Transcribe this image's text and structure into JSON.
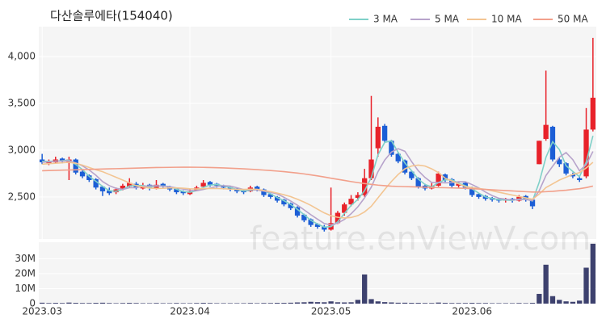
{
  "watermark": "feature.enViewV.com",
  "chart_data": [
    {
      "type": "candlestick",
      "title": "다산솔루에타(154040)",
      "up_color": "#e8222a",
      "down_color": "#1c5ed6",
      "grid": true,
      "ylim": [
        2050,
        4320
      ],
      "yticks": [
        {
          "value": 2500,
          "label": "2,500"
        },
        {
          "value": 3000,
          "label": "3,000"
        },
        {
          "value": 3500,
          "label": "3,500"
        },
        {
          "value": 4000,
          "label": "4,000"
        }
      ],
      "open": [
        2900,
        2860,
        2870,
        2910,
        2870,
        2900,
        2770,
        2730,
        2690,
        2610,
        2570,
        2550,
        2590,
        2610,
        2640,
        2590,
        2630,
        2590,
        2640,
        2610,
        2590,
        2560,
        2530,
        2570,
        2610,
        2660,
        2640,
        2610,
        2600,
        2590,
        2570,
        2560,
        2610,
        2580,
        2530,
        2500,
        2470,
        2430,
        2390,
        2310,
        2260,
        2210,
        2180,
        2150,
        2220,
        2330,
        2420,
        2490,
        2520,
        2700,
        3020,
        3260,
        3100,
        2960,
        2890,
        2770,
        2700,
        2620,
        2590,
        2620,
        2740,
        2690,
        2620,
        2650,
        2600,
        2530,
        2510,
        2490,
        2480,
        2460,
        2480,
        2460,
        2510,
        2470,
        2850,
        3120,
        3250,
        2900,
        2860,
        2740,
        2700,
        2720,
        3220
      ],
      "high": [
        2960,
        2900,
        2930,
        2920,
        2930,
        2910,
        2790,
        2740,
        2700,
        2620,
        2600,
        2600,
        2640,
        2700,
        2660,
        2650,
        2640,
        2680,
        2650,
        2620,
        2600,
        2570,
        2580,
        2620,
        2680,
        2670,
        2650,
        2630,
        2620,
        2600,
        2580,
        2620,
        2620,
        2590,
        2540,
        2510,
        2480,
        2440,
        2400,
        2320,
        2270,
        2220,
        2200,
        2600,
        2350,
        2440,
        2520,
        2550,
        2800,
        3580,
        3350,
        3280,
        3110,
        2980,
        2900,
        2780,
        2710,
        2640,
        2650,
        2770,
        2750,
        2700,
        2660,
        2660,
        2610,
        2540,
        2520,
        2500,
        2490,
        2490,
        2490,
        2520,
        2520,
        2480,
        3100,
        3850,
        3260,
        2920,
        2870,
        2760,
        2720,
        3450,
        4200
      ],
      "low": [
        2850,
        2840,
        2860,
        2860,
        2680,
        2740,
        2700,
        2660,
        2580,
        2510,
        2520,
        2530,
        2570,
        2600,
        2580,
        2580,
        2570,
        2580,
        2600,
        2560,
        2530,
        2520,
        2520,
        2560,
        2600,
        2610,
        2600,
        2580,
        2560,
        2540,
        2530,
        2550,
        2560,
        2500,
        2480,
        2440,
        2400,
        2360,
        2280,
        2230,
        2180,
        2160,
        2130,
        2140,
        2210,
        2300,
        2400,
        2460,
        2500,
        2680,
        2930,
        3080,
        2930,
        2860,
        2740,
        2680,
        2590,
        2570,
        2580,
        2610,
        2660,
        2600,
        2600,
        2580,
        2500,
        2480,
        2460,
        2450,
        2440,
        2440,
        2440,
        2450,
        2450,
        2370,
        2850,
        3100,
        2880,
        2820,
        2730,
        2700,
        2660,
        2700,
        3200
      ],
      "close": [
        2870,
        2880,
        2900,
        2880,
        2900,
        2760,
        2720,
        2680,
        2600,
        2560,
        2540,
        2580,
        2620,
        2650,
        2600,
        2620,
        2600,
        2630,
        2620,
        2580,
        2550,
        2540,
        2560,
        2600,
        2650,
        2630,
        2620,
        2600,
        2580,
        2560,
        2550,
        2600,
        2580,
        2520,
        2500,
        2460,
        2420,
        2380,
        2300,
        2250,
        2200,
        2180,
        2150,
        2220,
        2330,
        2420,
        2480,
        2520,
        2700,
        2900,
        3250,
        3100,
        2950,
        2880,
        2760,
        2700,
        2610,
        2590,
        2620,
        2750,
        2680,
        2620,
        2640,
        2600,
        2520,
        2500,
        2480,
        2470,
        2460,
        2470,
        2460,
        2500,
        2470,
        2400,
        3100,
        3270,
        2900,
        2850,
        2750,
        2720,
        2680,
        3220,
        3560
      ],
      "series": [
        {
          "name": "3 MA",
          "color": "#7fd0c8",
          "values": [
            2880,
            2880,
            2883,
            2887,
            2893,
            2847,
            2793,
            2720,
            2667,
            2613,
            2567,
            2560,
            2580,
            2617,
            2623,
            2623,
            2607,
            2617,
            2617,
            2610,
            2583,
            2557,
            2550,
            2567,
            2603,
            2627,
            2633,
            2617,
            2600,
            2580,
            2563,
            2570,
            2577,
            2567,
            2533,
            2493,
            2460,
            2420,
            2367,
            2310,
            2250,
            2210,
            2177,
            2183,
            2233,
            2323,
            2410,
            2473,
            2567,
            2707,
            2950,
            3083,
            3100,
            2977,
            2863,
            2780,
            2690,
            2633,
            2607,
            2653,
            2683,
            2683,
            2647,
            2620,
            2587,
            2540,
            2500,
            2483,
            2470,
            2467,
            2463,
            2477,
            2477,
            2457,
            2657,
            2923,
            3090,
            3007,
            2833,
            2773,
            2717,
            2873,
            3153
          ]
        },
        {
          "name": "5 MA",
          "color": "#b7a3cb",
          "values": [
            2870,
            2875,
            2883,
            2883,
            2886,
            2864,
            2832,
            2788,
            2732,
            2664,
            2620,
            2592,
            2580,
            2598,
            2598,
            2614,
            2618,
            2620,
            2614,
            2610,
            2596,
            2584,
            2570,
            2566,
            2580,
            2596,
            2612,
            2620,
            2616,
            2598,
            2578,
            2578,
            2574,
            2562,
            2550,
            2532,
            2496,
            2456,
            2412,
            2362,
            2310,
            2262,
            2216,
            2200,
            2220,
            2260,
            2320,
            2394,
            2490,
            2604,
            2770,
            2894,
            2980,
            3016,
            2988,
            2878,
            2780,
            2708,
            2654,
            2654,
            2650,
            2652,
            2662,
            2662,
            2632,
            2596,
            2552,
            2514,
            2486,
            2476,
            2468,
            2472,
            2472,
            2460,
            2566,
            2728,
            2828,
            2924,
            2974,
            2898,
            2780,
            2844,
            2986
          ]
        },
        {
          "name": "10 MA",
          "color": "#f3c592",
          "values": [
            2850,
            2855,
            2860,
            2865,
            2870,
            2860,
            2840,
            2815,
            2790,
            2770,
            2740,
            2710,
            2680,
            2650,
            2620,
            2606,
            2594,
            2590,
            2592,
            2596,
            2597,
            2593,
            2587,
            2585,
            2590,
            2590,
            2590,
            2588,
            2583,
            2580,
            2580,
            2583,
            2581,
            2570,
            2557,
            2541,
            2523,
            2503,
            2475,
            2445,
            2410,
            2369,
            2329,
            2299,
            2282,
            2275,
            2280,
            2300,
            2340,
            2400,
            2490,
            2580,
            2665,
            2740,
            2800,
            2830,
            2840,
            2830,
            2800,
            2760,
            2700,
            2670,
            2640,
            2610,
            2600,
            2590,
            2580,
            2565,
            2550,
            2535,
            2520,
            2505,
            2490,
            2475,
            2530,
            2600,
            2640,
            2680,
            2710,
            2740,
            2760,
            2810,
            2870
          ]
        },
        {
          "name": "50 MA",
          "color": "#f2a08b",
          "values": [
            2780,
            2782,
            2784,
            2786,
            2788,
            2790,
            2792,
            2794,
            2796,
            2798,
            2800,
            2802,
            2804,
            2806,
            2808,
            2810,
            2812,
            2814,
            2815,
            2816,
            2817,
            2818,
            2818,
            2817,
            2816,
            2814,
            2812,
            2810,
            2807,
            2804,
            2800,
            2796,
            2792,
            2787,
            2782,
            2776,
            2770,
            2763,
            2755,
            2746,
            2736,
            2725,
            2713,
            2700,
            2688,
            2676,
            2664,
            2653,
            2643,
            2634,
            2626,
            2620,
            2615,
            2612,
            2610,
            2608,
            2606,
            2604,
            2602,
            2600,
            2598,
            2596,
            2594,
            2592,
            2588,
            2584,
            2580,
            2576,
            2572,
            2568,
            2564,
            2560,
            2556,
            2552,
            2552,
            2556,
            2560,
            2566,
            2572,
            2580,
            2588,
            2600,
            2616
          ]
        }
      ]
    },
    {
      "type": "bar",
      "color": "#3d416e",
      "ylim": [
        0,
        41000000
      ],
      "yticks": [
        0,
        {
          "value": 10000000,
          "label": "10M"
        },
        {
          "value": 20000000,
          "label": "20M"
        },
        {
          "value": 30000000,
          "label": "30M"
        }
      ],
      "categories": [
        "2023.03",
        null,
        null,
        null,
        null,
        null,
        null,
        null,
        null,
        null,
        null,
        null,
        null,
        null,
        null,
        null,
        null,
        null,
        null,
        null,
        null,
        null,
        "2023.04",
        null,
        null,
        null,
        null,
        null,
        null,
        null,
        null,
        null,
        null,
        null,
        null,
        null,
        null,
        null,
        null,
        null,
        null,
        null,
        null,
        "2023.05",
        null,
        null,
        null,
        null,
        null,
        null,
        null,
        null,
        null,
        null,
        null,
        null,
        null,
        null,
        null,
        null,
        null,
        null,
        null,
        null,
        "2023.06",
        null,
        null,
        null,
        null,
        null,
        null,
        null,
        null,
        null,
        null,
        null,
        null,
        null,
        null,
        null,
        null,
        null,
        null
      ],
      "values": [
        600000,
        400000,
        500000,
        400000,
        700000,
        500000,
        400000,
        400000,
        500000,
        600000,
        400000,
        300000,
        400000,
        500000,
        400000,
        300000,
        300000,
        400000,
        300000,
        300000,
        400000,
        300000,
        300000,
        400000,
        500000,
        400000,
        300000,
        300000,
        300000,
        300000,
        300000,
        400000,
        300000,
        400000,
        400000,
        500000,
        500000,
        600000,
        800000,
        900000,
        1200000,
        1000000,
        900000,
        1500000,
        900000,
        800000,
        900000,
        2500000,
        19500000,
        3000000,
        1500000,
        1000000,
        800000,
        600000,
        600000,
        500000,
        500000,
        400000,
        400000,
        700000,
        500000,
        400000,
        400000,
        400000,
        500000,
        400000,
        400000,
        300000,
        300000,
        300000,
        300000,
        400000,
        300000,
        500000,
        6500000,
        26000000,
        5000000,
        2500000,
        1500000,
        1200000,
        2000000,
        24000000,
        40000000
      ]
    }
  ]
}
